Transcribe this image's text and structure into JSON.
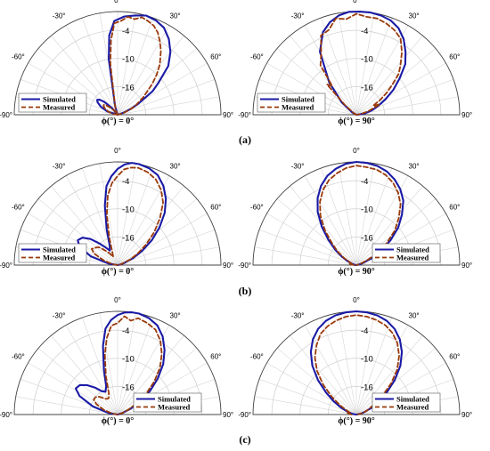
{
  "panel_labels": [
    "(a)",
    "(b)",
    "(c)"
  ],
  "chart_data": [
    {
      "type": "polar-line",
      "panel": "(a)",
      "caption": "ϕ(°) = 0°",
      "rlim": [
        -22,
        0
      ],
      "rticks": [
        "-4",
        "-10",
        "-16"
      ],
      "rtick_values": [
        -4,
        -10,
        -16
      ],
      "theta_ticks": [
        "-90°",
        "-60°",
        "-30°",
        "0°",
        "30°",
        "60°",
        "90°"
      ],
      "legend_location": "bottom-left",
      "series": [
        {
          "name": "Simulated",
          "theta": [
            -90,
            -72,
            -64,
            -58,
            -54,
            -50,
            -46,
            -40,
            -30,
            -22,
            -16,
            -11,
            -9,
            -6,
            -2,
            4,
            10,
            16,
            22,
            28,
            34,
            40,
            46,
            52,
            56,
            62,
            66,
            70,
            74,
            78,
            86,
            90
          ],
          "db": [
            -22,
            -19.6,
            -18,
            -17,
            -16.6,
            -17,
            -18,
            -20,
            -22,
            -22,
            -20,
            -17,
            -10,
            -5,
            -2,
            -1,
            -0.5,
            0,
            -0.3,
            -1,
            -2.5,
            -4.5,
            -7,
            -11,
            -13,
            -17,
            -19,
            -20.5,
            -21.5,
            -22,
            -22,
            -22
          ]
        },
        {
          "name": "Measured",
          "theta": [
            -90,
            -80,
            -72,
            -64,
            -58,
            -54,
            -50,
            -44,
            -38,
            -30,
            -22,
            -16,
            -11,
            -8,
            -5,
            -2,
            2,
            6,
            10,
            14,
            18,
            22,
            26,
            30,
            34,
            40,
            44,
            48,
            52,
            56,
            60,
            64,
            68,
            72,
            78,
            86,
            90
          ],
          "db": [
            -22,
            -21,
            -20,
            -19,
            -18.5,
            -18.4,
            -19,
            -20,
            -21,
            -22,
            -21.5,
            -20,
            -18,
            -11,
            -6,
            -2.5,
            -2,
            -1,
            -1.3,
            -0.6,
            -1,
            -1.5,
            -2.5,
            -4,
            -5.5,
            -8,
            -10,
            -12,
            -14,
            -15.5,
            -17,
            -18,
            -19.5,
            -20.5,
            -21.5,
            -22,
            -22
          ]
        }
      ]
    },
    {
      "type": "polar-line",
      "panel": "(a)",
      "caption": "ϕ(°) = 90°",
      "rlim": [
        -22,
        0
      ],
      "rticks": [
        "-4",
        "-10",
        "-16"
      ],
      "rtick_values": [
        -4,
        -10,
        -16
      ],
      "theta_ticks": [
        "-90°",
        "-60°",
        "-30°",
        "0°",
        "30°",
        "60°",
        "90°"
      ],
      "legend_location": "bottom-left",
      "series": [
        {
          "name": "Simulated",
          "theta": [
            -90,
            -80,
            -70,
            -60,
            -50,
            -40,
            -30,
            -22,
            -16,
            -10,
            -4,
            2,
            8,
            14,
            20,
            26,
            32,
            38,
            44,
            50,
            56,
            62,
            68,
            74,
            80,
            86,
            90
          ],
          "db": [
            -22,
            -22,
            -22,
            -21,
            -18,
            -13,
            -6.5,
            -3,
            -1.5,
            -0.5,
            0,
            0,
            0,
            -0.2,
            -0.6,
            -1.5,
            -3,
            -5,
            -7,
            -10,
            -12.5,
            -15,
            -17,
            -18.5,
            -20,
            -21.5,
            -22
          ]
        },
        {
          "name": "Measured",
          "theta": [
            -90,
            -80,
            -70,
            -60,
            -50,
            -44,
            -40,
            -36,
            -30,
            -24,
            -18,
            -12,
            -6,
            0,
            6,
            12,
            18,
            24,
            30,
            36,
            42,
            46,
            50,
            54,
            58,
            62,
            66,
            70,
            74,
            80,
            86,
            90
          ],
          "db": [
            -22,
            -22,
            -22,
            -21.5,
            -19,
            -13,
            -14,
            -9,
            -7,
            -3.5,
            -3,
            -1,
            -1.5,
            -0.5,
            -1,
            -1,
            -1.5,
            -2.2,
            -3.2,
            -5.5,
            -8,
            -9.5,
            -12,
            -14,
            -16,
            -18,
            -16.5,
            -18.5,
            -19.5,
            -21,
            -22,
            -22
          ]
        }
      ]
    },
    {
      "type": "polar-line",
      "panel": "(b)",
      "caption": "ϕ(°) = 0°",
      "rlim": [
        -22,
        0
      ],
      "rticks": [
        "-4",
        "-10",
        "-16"
      ],
      "rtick_values": [
        -4,
        -10,
        -16
      ],
      "theta_ticks": [
        "-90°",
        "-60°",
        "-30°",
        "0°",
        "30°",
        "60°",
        "90°"
      ],
      "legend_location": "bottom-left",
      "series": [
        {
          "name": "Simulated",
          "theta": [
            -90,
            -80,
            -72,
            -64,
            -58,
            -52,
            -46,
            -40,
            -34,
            -28,
            -22,
            -17,
            -12,
            -8,
            -4,
            0,
            4,
            8,
            12,
            18,
            24,
            30,
            36,
            42,
            48,
            54,
            60,
            66,
            72,
            78,
            84,
            90
          ],
          "db": [
            -22,
            -20,
            -16,
            -13,
            -12,
            -12.5,
            -14,
            -16,
            -17.5,
            -18.5,
            -17.5,
            -14,
            -9,
            -5,
            -3,
            -1.5,
            -0.5,
            0,
            0,
            -0.3,
            -1,
            -2.5,
            -4.5,
            -7,
            -10,
            -13,
            -16,
            -18.5,
            -20.5,
            -21.5,
            -22,
            -22
          ]
        },
        {
          "name": "Measured",
          "theta": [
            -90,
            -80,
            -72,
            -64,
            -58,
            -52,
            -46,
            -40,
            -34,
            -28,
            -22,
            -17,
            -12,
            -8,
            -4,
            0,
            4,
            8,
            12,
            18,
            24,
            30,
            36,
            42,
            48,
            54,
            60,
            66,
            72,
            78,
            84,
            90
          ],
          "db": [
            -22,
            -21,
            -19,
            -16.5,
            -15.5,
            -16,
            -16.5,
            -18,
            -19,
            -20,
            -19,
            -16,
            -11,
            -7,
            -4.5,
            -3,
            -1.5,
            -1,
            -0.8,
            -1.2,
            -2,
            -3.5,
            -5.5,
            -8.5,
            -11.5,
            -14.5,
            -17,
            -19,
            -21,
            -21.5,
            -22,
            -22
          ]
        }
      ]
    },
    {
      "type": "polar-line",
      "panel": "(b)",
      "caption": "ϕ(°) = 90°",
      "rlim": [
        -22,
        0
      ],
      "rticks": [
        "-4",
        "-10",
        "-16"
      ],
      "rtick_values": [
        -4,
        -10,
        -16
      ],
      "theta_ticks": [
        "-90°",
        "-60°",
        "-30°",
        "0°",
        "30°",
        "60°",
        "90°"
      ],
      "legend_location": "bottom-right",
      "series": [
        {
          "name": "Simulated",
          "theta": [
            -90,
            -84,
            -78,
            -72,
            -66,
            -60,
            -54,
            -48,
            -42,
            -36,
            -30,
            -24,
            -18,
            -12,
            -6,
            0,
            6,
            12,
            18,
            24,
            30,
            36,
            42,
            48,
            54,
            60,
            66,
            72,
            78,
            84,
            90
          ],
          "db": [
            -22,
            -21.8,
            -21.5,
            -21,
            -20,
            -18.5,
            -16.5,
            -14,
            -11,
            -8,
            -5.5,
            -3.5,
            -2,
            -1,
            -0.3,
            0,
            -0.1,
            -0.4,
            -1,
            -2,
            -3.3,
            -5,
            -7.5,
            -10,
            -13,
            -16,
            -18.5,
            -20.5,
            -21.5,
            -22,
            -22
          ]
        },
        {
          "name": "Measured",
          "theta": [
            -90,
            -84,
            -78,
            -72,
            -66,
            -60,
            -54,
            -48,
            -42,
            -36,
            -30,
            -24,
            -18,
            -12,
            -6,
            0,
            6,
            12,
            18,
            24,
            30,
            36,
            42,
            48,
            54,
            60,
            66,
            72,
            78,
            84,
            90
          ],
          "db": [
            -21.5,
            -21,
            -20.5,
            -21,
            -20.5,
            -19,
            -17,
            -15,
            -12,
            -9,
            -6.5,
            -4.5,
            -3,
            -2,
            -1.2,
            -0.8,
            -1,
            -1.2,
            -1.8,
            -2.8,
            -4.2,
            -6,
            -8.5,
            -11,
            -14,
            -17,
            -19.5,
            -21,
            -21.8,
            -22,
            -22
          ]
        }
      ]
    },
    {
      "type": "polar-line",
      "panel": "(c)",
      "caption": "ϕ(°) = 0°",
      "rlim": [
        -22,
        0
      ],
      "rticks": [
        "-4",
        "-10",
        "-16"
      ],
      "rtick_values": [
        -4,
        -10,
        -16
      ],
      "theta_ticks": [
        "-90°",
        "-60°",
        "-30°",
        "0°",
        "30°",
        "60°",
        "90°"
      ],
      "legend_location": "bottom-right",
      "series": [
        {
          "name": "Simulated",
          "theta": [
            -90,
            -80,
            -72,
            -64,
            -58,
            -52,
            -46,
            -40,
            -34,
            -28,
            -22,
            -17,
            -12,
            -8,
            -4,
            0,
            4,
            8,
            12,
            18,
            24,
            30,
            36,
            42,
            48,
            54,
            60,
            66,
            72,
            78,
            84,
            90
          ],
          "db": [
            -22,
            -20,
            -16.5,
            -13,
            -11.5,
            -11.8,
            -13,
            -14.5,
            -16,
            -16.5,
            -15.5,
            -12,
            -7,
            -3.5,
            -1.8,
            -0.8,
            -0.2,
            0,
            0,
            -0.4,
            -1.2,
            -2.8,
            -5,
            -7.5,
            -10.5,
            -13.5,
            -16.5,
            -19,
            -21,
            -21.8,
            -22,
            -22
          ]
        },
        {
          "name": "Measured",
          "theta": [
            -90,
            -80,
            -72,
            -64,
            -58,
            -52,
            -46,
            -40,
            -34,
            -28,
            -22,
            -17,
            -12,
            -8,
            -4,
            0,
            4,
            8,
            12,
            18,
            24,
            30,
            36,
            42,
            48,
            54,
            60,
            66,
            72,
            78,
            84,
            90
          ],
          "db": [
            -22,
            -21,
            -19,
            -17,
            -16,
            -16,
            -16.5,
            -17.5,
            -18,
            -18,
            -17,
            -13.5,
            -9,
            -5.5,
            -3,
            -2.5,
            -1,
            -1.8,
            -1,
            -1.5,
            -2.2,
            -3.8,
            -6,
            -8.5,
            -11.5,
            -14.5,
            -17.5,
            -19.5,
            -21,
            -21.8,
            -22,
            -22
          ]
        }
      ]
    },
    {
      "type": "polar-line",
      "panel": "(c)",
      "caption": "ϕ(°) = 90°",
      "rlim": [
        -22,
        0
      ],
      "rticks": [
        "-4",
        "-10",
        "-16"
      ],
      "rtick_values": [
        -4,
        -10,
        -16
      ],
      "theta_ticks": [
        "-90°",
        "-60°",
        "-30°",
        "0°",
        "30°",
        "60°",
        "90°"
      ],
      "legend_location": "bottom-right",
      "series": [
        {
          "name": "Simulated",
          "theta": [
            -90,
            -84,
            -78,
            -72,
            -66,
            -60,
            -54,
            -48,
            -42,
            -36,
            -30,
            -24,
            -18,
            -12,
            -6,
            0,
            6,
            12,
            18,
            24,
            30,
            36,
            42,
            48,
            54,
            60,
            66,
            72,
            78,
            84,
            90
          ],
          "db": [
            -22,
            -21.5,
            -21,
            -20,
            -18.5,
            -16.5,
            -14,
            -11,
            -8,
            -5.5,
            -3.5,
            -2,
            -1,
            -0.4,
            -0.1,
            0,
            -0.1,
            -0.4,
            -1,
            -2,
            -3.5,
            -5.5,
            -8,
            -11,
            -14,
            -16.5,
            -18.5,
            -20,
            -21,
            -21.8,
            -22
          ]
        },
        {
          "name": "Measured",
          "theta": [
            -90,
            -84,
            -78,
            -72,
            -66,
            -60,
            -54,
            -48,
            -42,
            -36,
            -30,
            -24,
            -18,
            -12,
            -6,
            0,
            6,
            12,
            18,
            24,
            30,
            36,
            42,
            48,
            54,
            60,
            66,
            72,
            78,
            84,
            90
          ],
          "db": [
            -21,
            -20.5,
            -20,
            -20.5,
            -19.5,
            -18,
            -15.5,
            -12.5,
            -9.5,
            -7,
            -5,
            -3.2,
            -2.2,
            -1.5,
            -1,
            -0.8,
            -1,
            -1.4,
            -2,
            -3,
            -4.5,
            -6.5,
            -9,
            -12,
            -15,
            -17.5,
            -19,
            -20,
            -21,
            -21.5,
            -22
          ]
        }
      ]
    }
  ]
}
